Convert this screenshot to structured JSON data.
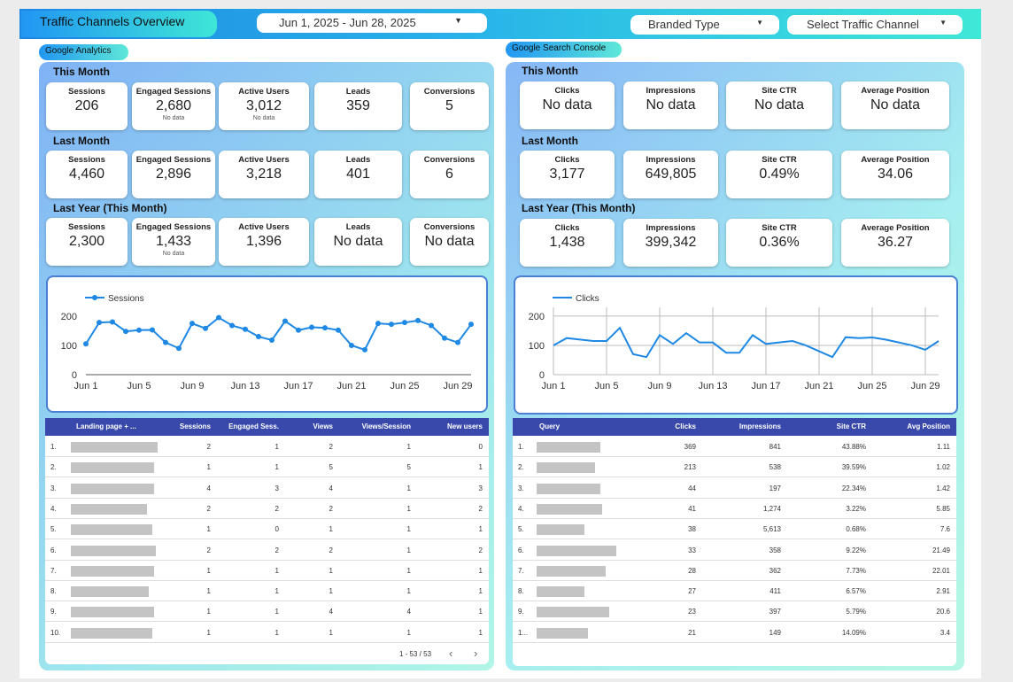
{
  "header": {
    "title": "Traffic Channels Overview",
    "date_range": "Jun 1, 2025 - Jun 28, 2025",
    "filters": [
      "Branded Type",
      "Select Traffic Channel"
    ]
  },
  "panels": [
    {
      "badge": "Google Analytics",
      "sections": [
        {
          "title": "This Month",
          "cards": [
            {
              "label": "Sessions",
              "value": "206"
            },
            {
              "label": "Engaged Sessions",
              "value": "2,680",
              "note": "No data"
            },
            {
              "label": "Active Users",
              "value": "3,012",
              "note": "No data"
            },
            {
              "label": "Leads",
              "value": "359"
            },
            {
              "label": "Conversions",
              "value": "5"
            }
          ]
        },
        {
          "title": "Last Month",
          "cards": [
            {
              "label": "Sessions",
              "value": "4,460"
            },
            {
              "label": "Engaged Sessions",
              "value": "2,896"
            },
            {
              "label": "Active Users",
              "value": "3,218"
            },
            {
              "label": "Leads",
              "value": "401"
            },
            {
              "label": "Conversions",
              "value": "6"
            }
          ]
        },
        {
          "title": "Last Year (This Month)",
          "cards": [
            {
              "label": "Sessions",
              "value": "2,300"
            },
            {
              "label": "Engaged Sessions",
              "value": "1,433",
              "note": "No data"
            },
            {
              "label": "Active Users",
              "value": "1,396"
            },
            {
              "label": "Leads",
              "value": "No data"
            },
            {
              "label": "Conversions",
              "value": "No data"
            }
          ]
        }
      ],
      "chart": {
        "type": "line",
        "markers": true,
        "grid": false,
        "categories": [
          "Jun 1",
          null,
          null,
          null,
          "Jun 5",
          null,
          null,
          null,
          "Jun 9",
          null,
          null,
          null,
          "Jun 13",
          null,
          null,
          null,
          "Jun 17",
          null,
          null,
          null,
          "Jun 21",
          null,
          null,
          null,
          "Jun 25",
          null,
          null,
          null,
          "Jun 29",
          null
        ],
        "series": [
          {
            "name": "Sessions",
            "color": "#1e88e5",
            "values": [
              105,
              178,
              180,
              148,
              152,
              153,
              110,
              90,
              175,
              158,
              195,
              168,
              155,
              130,
              118,
              183,
              152,
              162,
              160,
              152,
              100,
              85,
              175,
              172,
              178,
              185,
              168,
              125,
              110,
              172
            ]
          }
        ],
        "ylim": [
          0,
          230
        ],
        "yticks": [
          0,
          100,
          200
        ]
      },
      "table": {
        "columns": [
          "Landing page + ...",
          "Sessions",
          "Engaged Sess.",
          "Views",
          "Views/Session",
          "New users"
        ],
        "rows": [
          [
            "1.",
            "2",
            "1",
            "2",
            "1",
            "0"
          ],
          [
            "2.",
            "1",
            "1",
            "5",
            "5",
            "1"
          ],
          [
            "3.",
            "4",
            "3",
            "4",
            "1",
            "3"
          ],
          [
            "4.",
            "2",
            "2",
            "2",
            "1",
            "2"
          ],
          [
            "5.",
            "1",
            "0",
            "1",
            "1",
            "1"
          ],
          [
            "6.",
            "2",
            "2",
            "2",
            "1",
            "2"
          ],
          [
            "7.",
            "1",
            "1",
            "1",
            "1",
            "1"
          ],
          [
            "8.",
            "1",
            "1",
            "1",
            "1",
            "1"
          ],
          [
            "9.",
            "1",
            "1",
            "4",
            "4",
            "1"
          ],
          [
            "10.",
            "1",
            "1",
            "1",
            "1",
            "1"
          ]
        ],
        "footer": "1 - 53 / 53"
      }
    },
    {
      "badge": "Google Search Console",
      "sections": [
        {
          "title": "This Month",
          "cards": [
            {
              "label": "Clicks",
              "value": "No data"
            },
            {
              "label": "Impressions",
              "value": "No data"
            },
            {
              "label": "Site CTR",
              "value": "No data"
            },
            {
              "label": "Average Position",
              "value": "No data"
            }
          ]
        },
        {
          "title": "Last Month",
          "cards": [
            {
              "label": "Clicks",
              "value": "3,177"
            },
            {
              "label": "Impressions",
              "value": "649,805"
            },
            {
              "label": "Site CTR",
              "value": "0.49%"
            },
            {
              "label": "Average Position",
              "value": "34.06"
            }
          ]
        },
        {
          "title": "Last Year (This Month)",
          "cards": [
            {
              "label": "Clicks",
              "value": "1,438"
            },
            {
              "label": "Impressions",
              "value": "399,342"
            },
            {
              "label": "Site CTR",
              "value": "0.36%"
            },
            {
              "label": "Average Position",
              "value": "36.27"
            }
          ]
        }
      ],
      "chart": {
        "type": "line",
        "markers": false,
        "grid": true,
        "categories": [
          "Jun 1",
          null,
          null,
          null,
          "Jun 5",
          null,
          null,
          null,
          "Jun 9",
          null,
          null,
          null,
          "Jun 13",
          null,
          null,
          null,
          "Jun 17",
          null,
          null,
          null,
          "Jun 21",
          null,
          null,
          null,
          "Jun 25",
          null,
          null,
          null,
          "Jun 29",
          null
        ],
        "series": [
          {
            "name": "Clicks",
            "color": "#1e88e5",
            "values": [
              100,
              125,
              120,
              115,
              115,
              160,
              70,
              60,
              135,
              105,
              142,
              110,
              110,
              75,
              75,
              135,
              105,
              110,
              115,
              100,
              80,
              60,
              128,
              125,
              127,
              120,
              110,
              100,
              85,
              115
            ]
          }
        ],
        "ylim": [
          0,
          230
        ],
        "yticks": [
          0,
          100,
          200
        ]
      },
      "table": {
        "columns": [
          "Query",
          "Clicks",
          "Impressions",
          "Site CTR",
          "Avg Position"
        ],
        "rows": [
          [
            "1.",
            "369",
            "841",
            "43.88%",
            "1.11"
          ],
          [
            "2.",
            "213",
            "538",
            "39.59%",
            "1.02"
          ],
          [
            "3.",
            "44",
            "197",
            "22.34%",
            "1.42"
          ],
          [
            "4.",
            "41",
            "1,274",
            "3.22%",
            "5.85"
          ],
          [
            "5.",
            "38",
            "5,613",
            "0.68%",
            "7.6"
          ],
          [
            "6.",
            "33",
            "358",
            "9.22%",
            "21.49"
          ],
          [
            "7.",
            "28",
            "362",
            "7.73%",
            "22.01"
          ],
          [
            "8.",
            "27",
            "411",
            "6.57%",
            "2.91"
          ],
          [
            "9.",
            "23",
            "397",
            "5.79%",
            "20.6"
          ],
          [
            "1...",
            "21",
            "149",
            "14.09%",
            "3.4"
          ]
        ]
      }
    }
  ]
}
